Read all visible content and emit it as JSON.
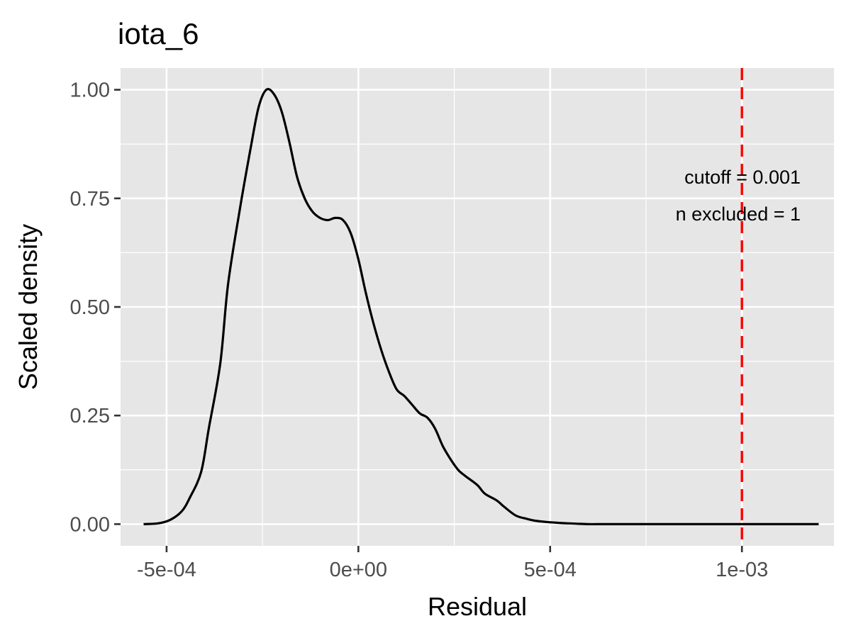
{
  "chart_data": {
    "type": "line",
    "title": "iota_6",
    "xlabel": "Residual",
    "ylabel": "Scaled density",
    "xlim": [
      -0.00062,
      0.00124
    ],
    "ylim": [
      -0.05,
      1.05
    ],
    "x_ticks": [
      -0.0005,
      0.0,
      0.0005,
      0.001
    ],
    "x_tick_labels": [
      "-5e-04",
      "0e+00",
      "5e-04",
      "1e-03"
    ],
    "y_ticks": [
      0.0,
      0.25,
      0.5,
      0.75,
      1.0
    ],
    "y_tick_labels": [
      "0.00",
      "0.25",
      "0.50",
      "0.75",
      "1.00"
    ],
    "grid": true,
    "series": [
      {
        "color": "#000000",
        "x": [
          -0.00056,
          -0.00052,
          -0.00049,
          -0.00046,
          -0.00044,
          -0.00041,
          -0.00039,
          -0.00036,
          -0.00034,
          -0.00031,
          -0.00028,
          -0.00026,
          -0.00024,
          -0.00022,
          -0.0002,
          -0.00018,
          -0.00016,
          -0.00014,
          -0.00012,
          -0.0001,
          -8e-05,
          -6e-05,
          -4e-05,
          -2e-05,
          0.0,
          2e-05,
          4e-05,
          6e-05,
          8e-05,
          0.0001,
          0.00012,
          0.00014,
          0.00016,
          0.00018,
          0.0002,
          0.00022,
          0.00024,
          0.00026,
          0.00028,
          0.00031,
          0.00033,
          0.00036,
          0.00038,
          0.00041,
          0.00044,
          0.00046,
          0.00049,
          0.00052,
          0.00054,
          0.00057,
          0.0006,
          0.00062,
          0.00064,
          0.00067,
          0.0007,
          0.00072,
          0.00075,
          0.0008,
          0.0009,
          0.001,
          0.0011,
          0.0012
        ],
        "y": [
          0.0,
          0.002,
          0.01,
          0.03,
          0.06,
          0.12,
          0.22,
          0.37,
          0.55,
          0.72,
          0.87,
          0.96,
          1.0,
          0.99,
          0.95,
          0.88,
          0.8,
          0.75,
          0.72,
          0.705,
          0.7,
          0.705,
          0.7,
          0.67,
          0.61,
          0.53,
          0.46,
          0.4,
          0.35,
          0.31,
          0.295,
          0.275,
          0.255,
          0.245,
          0.22,
          0.18,
          0.15,
          0.125,
          0.11,
          0.09,
          0.07,
          0.055,
          0.04,
          0.02,
          0.012,
          0.008,
          0.005,
          0.003,
          0.002,
          0.001,
          0.0,
          0.0,
          0.0,
          0.0,
          0.0,
          0.0,
          0.0,
          0.0,
          0.0,
          0.0,
          0.0,
          0.0
        ]
      }
    ],
    "cutoff_line": {
      "x": 0.001,
      "color": "#ff0000",
      "style": "dashed"
    },
    "annotations": [
      "cutoff = 0.001",
      "n excluded = 1"
    ],
    "colors": {
      "panel": "#e6e6e6",
      "grid": "#ffffff",
      "tick": "#333333"
    }
  }
}
